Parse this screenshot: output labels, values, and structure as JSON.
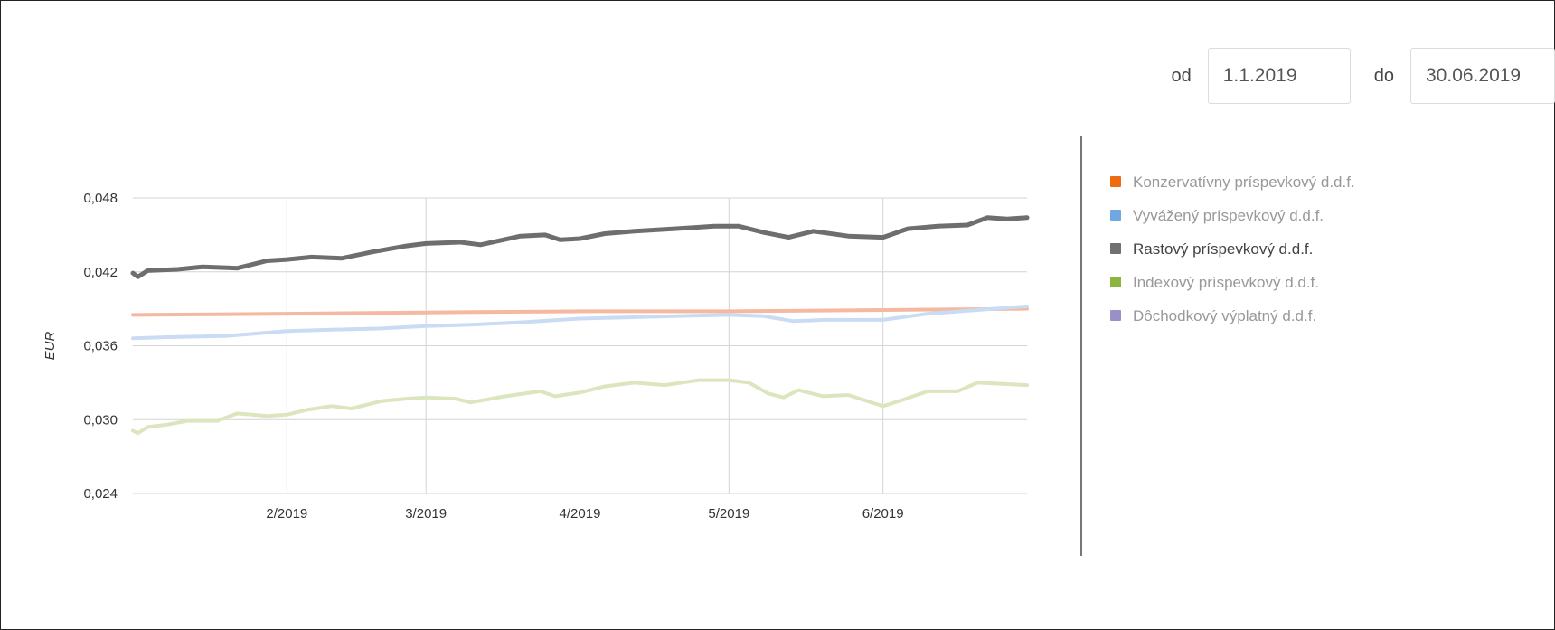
{
  "filter": {
    "from_label": "od",
    "from_value": "1.1.2019",
    "to_label": "do",
    "to_value": "30.06.2019"
  },
  "legend": [
    {
      "label": "Konzervatívny príspevkový d.d.f.",
      "color": "#ee6b12"
    },
    {
      "label": "Vyvážený príspevkový d.d.f.",
      "color": "#6fa7e0"
    },
    {
      "label": "Rastový príspevkový d.d.f.",
      "color": "#707070"
    },
    {
      "label": "Indexový príspevkový d.d.f.",
      "color": "#8cb540"
    },
    {
      "label": "Dôchodkový výplatný d.d.f.",
      "color": "#9b8fc8"
    }
  ],
  "chart_data": {
    "type": "line",
    "ylabel": "EUR",
    "ylim": [
      0.024,
      0.048
    ],
    "yticks": [
      "0,048",
      "0,042",
      "0,036",
      "0,030",
      "0,024"
    ],
    "ytick_values": [
      0.048,
      0.042,
      0.036,
      0.03,
      0.024
    ],
    "xlim": [
      "2019-01-01",
      "2019-06-30"
    ],
    "xticks": [
      "2/2019",
      "3/2019",
      "4/2019",
      "5/2019",
      "6/2019"
    ],
    "xtick_dates": [
      "2019-02-01",
      "2019-03-01",
      "2019-04-01",
      "2019-05-01",
      "2019-06-01"
    ],
    "grid": true,
    "legend_position": "right",
    "series": [
      {
        "name": "Konzervatívny príspevkový d.d.f.",
        "color": "#f4b9a0",
        "width": 4,
        "points": [
          [
            "2019-01-01",
            0.0385
          ],
          [
            "2019-02-01",
            0.0386
          ],
          [
            "2019-03-01",
            0.0387
          ],
          [
            "2019-04-01",
            0.0388
          ],
          [
            "2019-05-01",
            0.0388
          ],
          [
            "2019-06-01",
            0.0389
          ],
          [
            "2019-06-30",
            0.039
          ]
        ]
      },
      {
        "name": "Vyvážený príspevkový d.d.f.",
        "color": "#c9dcf4",
        "width": 4,
        "points": [
          [
            "2019-01-01",
            0.0366
          ],
          [
            "2019-01-08",
            0.0367
          ],
          [
            "2019-01-20",
            0.0368
          ],
          [
            "2019-02-01",
            0.0372
          ],
          [
            "2019-02-10",
            0.0373
          ],
          [
            "2019-02-20",
            0.0374
          ],
          [
            "2019-03-01",
            0.0376
          ],
          [
            "2019-03-10",
            0.0377
          ],
          [
            "2019-03-20",
            0.0379
          ],
          [
            "2019-04-01",
            0.0382
          ],
          [
            "2019-04-10",
            0.0383
          ],
          [
            "2019-04-20",
            0.0384
          ],
          [
            "2019-05-01",
            0.0385
          ],
          [
            "2019-05-08",
            0.0384
          ],
          [
            "2019-05-14",
            0.038
          ],
          [
            "2019-05-20",
            0.0381
          ],
          [
            "2019-06-01",
            0.0381
          ],
          [
            "2019-06-10",
            0.0386
          ],
          [
            "2019-06-20",
            0.0389
          ],
          [
            "2019-06-30",
            0.0392
          ]
        ]
      },
      {
        "name": "Rastový príspevkový d.d.f.",
        "color": "#6e6e6e",
        "width": 5,
        "points": [
          [
            "2019-01-01",
            0.0419
          ],
          [
            "2019-01-02",
            0.0416
          ],
          [
            "2019-01-04",
            0.0421
          ],
          [
            "2019-01-10",
            0.0422
          ],
          [
            "2019-01-15",
            0.0424
          ],
          [
            "2019-01-22",
            0.0423
          ],
          [
            "2019-01-28",
            0.0429
          ],
          [
            "2019-02-01",
            0.043
          ],
          [
            "2019-02-06",
            0.0432
          ],
          [
            "2019-02-12",
            0.0431
          ],
          [
            "2019-02-18",
            0.0436
          ],
          [
            "2019-02-25",
            0.0441
          ],
          [
            "2019-03-01",
            0.0443
          ],
          [
            "2019-03-08",
            0.0444
          ],
          [
            "2019-03-12",
            0.0442
          ],
          [
            "2019-03-20",
            0.0449
          ],
          [
            "2019-03-25",
            0.045
          ],
          [
            "2019-03-28",
            0.0446
          ],
          [
            "2019-04-01",
            0.0447
          ],
          [
            "2019-04-06",
            0.0451
          ],
          [
            "2019-04-12",
            0.0453
          ],
          [
            "2019-04-20",
            0.0455
          ],
          [
            "2019-04-28",
            0.0457
          ],
          [
            "2019-05-03",
            0.0457
          ],
          [
            "2019-05-08",
            0.0452
          ],
          [
            "2019-05-13",
            0.0448
          ],
          [
            "2019-05-18",
            0.0453
          ],
          [
            "2019-05-25",
            0.0449
          ],
          [
            "2019-06-01",
            0.0448
          ],
          [
            "2019-06-06",
            0.0455
          ],
          [
            "2019-06-12",
            0.0457
          ],
          [
            "2019-06-18",
            0.0458
          ],
          [
            "2019-06-22",
            0.0464
          ],
          [
            "2019-06-26",
            0.0463
          ],
          [
            "2019-06-30",
            0.0464
          ]
        ]
      },
      {
        "name": "Indexový príspevkový d.d.f.",
        "color": "#dbe6bf",
        "width": 4,
        "points": [
          [
            "2019-01-01",
            0.0291
          ],
          [
            "2019-01-02",
            0.0289
          ],
          [
            "2019-01-04",
            0.0294
          ],
          [
            "2019-01-08",
            0.0296
          ],
          [
            "2019-01-12",
            0.0299
          ],
          [
            "2019-01-18",
            0.0299
          ],
          [
            "2019-01-22",
            0.0305
          ],
          [
            "2019-01-25",
            0.0304
          ],
          [
            "2019-01-28",
            0.0303
          ],
          [
            "2019-02-01",
            0.0304
          ],
          [
            "2019-02-05",
            0.0308
          ],
          [
            "2019-02-10",
            0.0311
          ],
          [
            "2019-02-14",
            0.0309
          ],
          [
            "2019-02-20",
            0.0315
          ],
          [
            "2019-02-25",
            0.0317
          ],
          [
            "2019-03-01",
            0.0318
          ],
          [
            "2019-03-07",
            0.0317
          ],
          [
            "2019-03-10",
            0.0314
          ],
          [
            "2019-03-17",
            0.0319
          ],
          [
            "2019-03-24",
            0.0323
          ],
          [
            "2019-03-27",
            0.0319
          ],
          [
            "2019-04-01",
            0.0322
          ],
          [
            "2019-04-06",
            0.0327
          ],
          [
            "2019-04-12",
            0.033
          ],
          [
            "2019-04-18",
            0.0328
          ],
          [
            "2019-04-25",
            0.0332
          ],
          [
            "2019-05-01",
            0.0332
          ],
          [
            "2019-05-05",
            0.033
          ],
          [
            "2019-05-09",
            0.0321
          ],
          [
            "2019-05-12",
            0.0318
          ],
          [
            "2019-05-15",
            0.0324
          ],
          [
            "2019-05-20",
            0.0319
          ],
          [
            "2019-05-25",
            0.032
          ],
          [
            "2019-06-01",
            0.0311
          ],
          [
            "2019-06-05",
            0.0316
          ],
          [
            "2019-06-10",
            0.0323
          ],
          [
            "2019-06-16",
            0.0323
          ],
          [
            "2019-06-20",
            0.033
          ],
          [
            "2019-06-25",
            0.0329
          ],
          [
            "2019-06-30",
            0.0328
          ]
        ]
      }
    ]
  }
}
